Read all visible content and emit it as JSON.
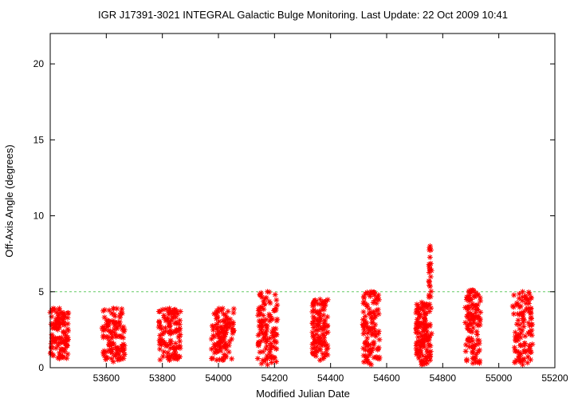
{
  "chart_data": {
    "type": "scatter",
    "title": "IGR J17391-3021   INTEGRAL Galactic Bulge Monitoring.  Last Update: 22 Oct 2009 10:41",
    "xlabel": "Modified Julian Date",
    "ylabel": "Off-Axis Angle (degrees)",
    "xlim": [
      53400,
      55200
    ],
    "ylim": [
      0,
      22
    ],
    "xticks": [
      53600,
      53800,
      54000,
      54200,
      54400,
      54600,
      54800,
      55000,
      55200
    ],
    "yticks": [
      0,
      5,
      10,
      15,
      20
    ],
    "grid": false,
    "legend": "none",
    "marker": "asterisk",
    "reference_line": {
      "y": 5,
      "style": "dashed",
      "color": "#66cc66"
    },
    "colors": {
      "points": "#ff0000",
      "axes": "#000000",
      "reference": "#66cc66"
    },
    "series": [
      {
        "clusters": [
          {
            "x": [
              53400,
              53465
            ],
            "y": [
              0.6,
              3.9
            ]
          },
          {
            "x": [
              53585,
              53665
            ],
            "y": [
              0.4,
              3.9
            ]
          },
          {
            "x": [
              53785,
              53865
            ],
            "y": [
              0.5,
              3.9
            ]
          },
          {
            "x": [
              53975,
              54055
            ],
            "y": [
              0.5,
              3.9
            ]
          },
          {
            "x": [
              54140,
              54210
            ],
            "y": [
              0.2,
              5.0
            ]
          },
          {
            "x": [
              54335,
              54390
            ],
            "y": [
              0.5,
              4.5
            ]
          },
          {
            "x": [
              54515,
              54575
            ],
            "y": [
              0.2,
              5.0
            ]
          },
          {
            "x": [
              54705,
              54745
            ],
            "y": [
              0.2,
              4.3
            ]
          },
          {
            "x": [
              54750,
              54760
            ],
            "y": [
              0.5,
              8.0
            ]
          },
          {
            "x": [
              54880,
              54935
            ],
            "y": [
              0.3,
              5.1
            ]
          },
          {
            "x": [
              55050,
              55120
            ],
            "y": [
              0.2,
              5.0
            ]
          }
        ]
      }
    ]
  }
}
